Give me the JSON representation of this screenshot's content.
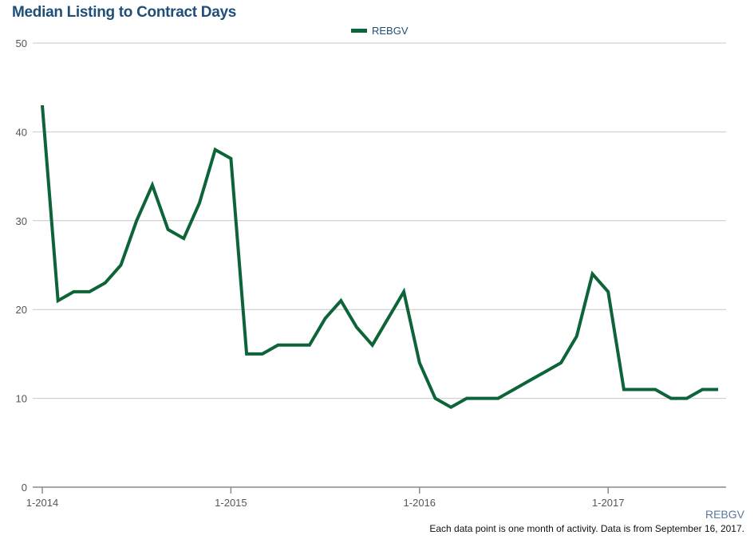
{
  "chart_data": {
    "type": "line",
    "title": "Median Listing to Contract Days",
    "xlabel": "",
    "ylabel": "",
    "ylim": [
      0,
      50
    ],
    "yticks": [
      0,
      10,
      20,
      30,
      40,
      50
    ],
    "xticks": [
      "1-2014",
      "1-2015",
      "1-2016",
      "1-2017"
    ],
    "xtick_index": [
      0,
      12,
      24,
      36
    ],
    "grid": true,
    "legend_position": "top-center",
    "series": [
      {
        "name": "REBGV",
        "color": "#0c6438",
        "values": [
          43,
          21,
          22,
          22,
          23,
          25,
          30,
          34,
          29,
          28,
          32,
          38,
          37,
          15,
          15,
          16,
          16,
          16,
          19,
          21,
          18,
          16,
          19,
          22,
          14,
          10,
          9,
          10,
          10,
          10,
          11,
          12,
          13,
          14,
          17,
          24,
          22,
          11,
          11,
          11,
          10,
          10,
          11,
          11
        ]
      }
    ]
  },
  "source_label": "REBGV",
  "footnote": "Each data point is one month of activity. Data is from September 16, 2017."
}
